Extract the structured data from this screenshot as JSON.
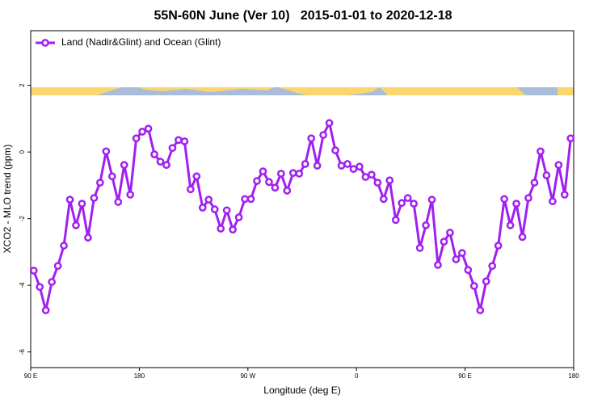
{
  "chart_data": {
    "type": "line",
    "title": "55N-60N June (Ver 10)   2015-01-01 to 2020-12-18",
    "xlabel": "Longitude (deg E)",
    "ylabel": "XCO2 - MLO trend (ppm)",
    "x": [
      92.5,
      97.5,
      102.5,
      107.5,
      112.5,
      117.5,
      122.5,
      127.5,
      132.5,
      137.5,
      142.5,
      147.5,
      152.5,
      157.5,
      162.5,
      167.5,
      172.5,
      177.5,
      182.5,
      187.5,
      192.5,
      197.5,
      202.5,
      207.5,
      212.5,
      217.5,
      222.5,
      227.5,
      232.5,
      237.5,
      242.5,
      247.5,
      252.5,
      257.5,
      262.5,
      267.5,
      272.5,
      277.5,
      282.5,
      287.5,
      292.5,
      297.5,
      302.5,
      307.5,
      312.5,
      317.5,
      322.5,
      327.5,
      332.5,
      337.5,
      342.5,
      347.5,
      352.5,
      357.5,
      362.5,
      367.5,
      372.5,
      377.5,
      382.5,
      387.5,
      392.5,
      397.5,
      402.5,
      407.5,
      412.5,
      417.5,
      422.5,
      427.5,
      432.5,
      437.5,
      442.5,
      447.5,
      452.5,
      457.5,
      462.5,
      467.5,
      472.5,
      477.5,
      482.5,
      487.5,
      492.5,
      497.5,
      502.5,
      507.5,
      512.5,
      517.5,
      522.5,
      527.5,
      532.5,
      537.5
    ],
    "series": [
      {
        "name": "Land (Nadir&Glint) and Ocean (Glint)",
        "color": "#a020f0",
        "values": [
          -3.56,
          -4.05,
          -4.75,
          -3.9,
          -3.42,
          -2.81,
          -1.43,
          -2.2,
          -1.55,
          -2.57,
          -1.38,
          -0.92,
          0.02,
          -0.73,
          -1.5,
          -0.39,
          -1.28,
          0.41,
          0.61,
          0.7,
          -0.07,
          -0.29,
          -0.39,
          0.12,
          0.36,
          0.32,
          -1.12,
          -0.73,
          -1.67,
          -1.43,
          -1.72,
          -2.3,
          -1.75,
          -2.33,
          -1.96,
          -1.41,
          -1.41,
          -0.87,
          -0.58,
          -0.9,
          -1.07,
          -0.65,
          -1.16,
          -0.63,
          -0.65,
          -0.36,
          0.41,
          -0.41,
          0.51,
          0.87,
          0.05,
          -0.41,
          -0.36,
          -0.51,
          -0.44,
          -0.75,
          -0.68,
          -0.92,
          -1.41,
          -0.85,
          -2.04,
          -1.53,
          -1.38,
          -1.55,
          -2.88,
          -2.2,
          -1.43,
          -3.39,
          -2.69,
          -2.42,
          -3.22,
          -3.03,
          -3.54,
          -4.02,
          -4.75,
          -3.88,
          -3.42,
          -2.81,
          -1.41,
          -2.2,
          -1.55,
          -2.55,
          -1.38,
          -0.92,
          0.02,
          -0.7,
          -1.48,
          -0.39,
          -1.28,
          0.41
        ]
      }
    ],
    "xlim": [
      90,
      540
    ],
    "xticks": [
      {
        "value": 90,
        "label": "90 E"
      },
      180,
      {
        "value": 270,
        "label": "90 W"
      },
      {
        "value": 360,
        "label": "0"
      },
      {
        "value": 450,
        "label": "90 E"
      },
      {
        "value": 540,
        "label": "180"
      }
    ],
    "ylim": [
      -6.47,
      3.64
    ],
    "yticks": [
      -6,
      -4,
      -2,
      0,
      2
    ],
    "legend": "top-left"
  }
}
